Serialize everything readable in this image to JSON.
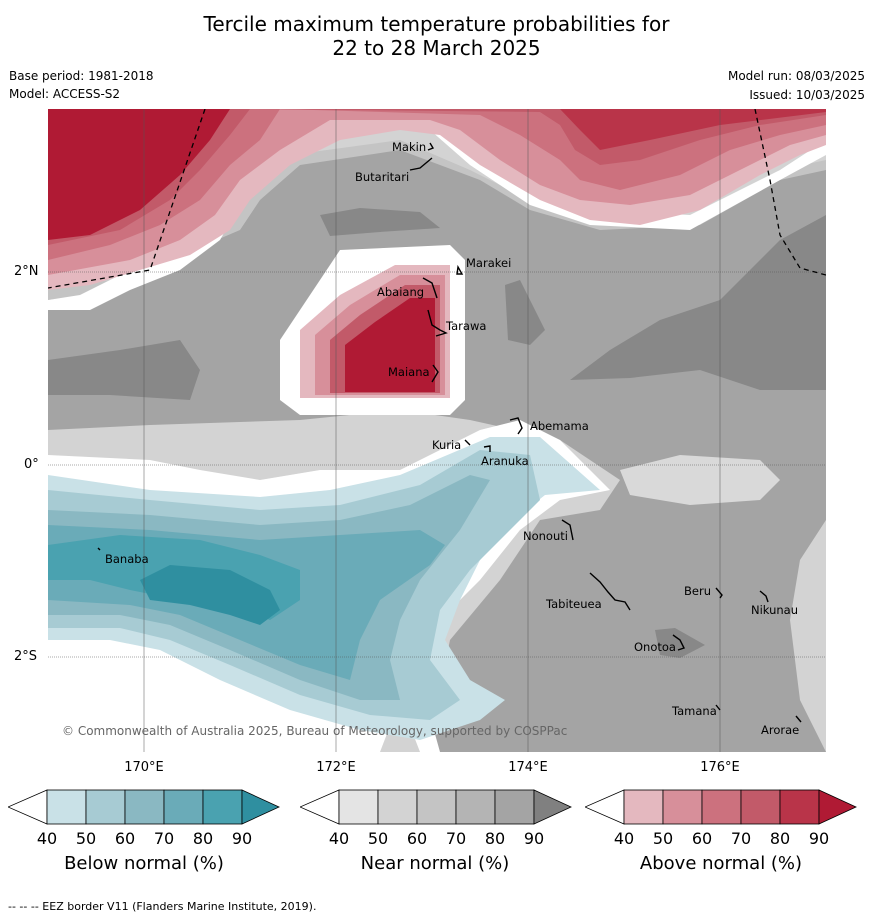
{
  "title_line1": "Tercile maximum temperature probabilities for",
  "title_line2": "22 to 28 March 2025",
  "base_period": "Base period: 1981-2018",
  "model": "Model: ACCESS-S2",
  "model_run": "Model run: 08/03/2025",
  "issued": "Issued: 10/03/2025",
  "copyright": "© Commonwealth of Australia 2025, Bureau of Meteorology, supported by COSPPac",
  "footer": "--  --  -- EEZ border V11 (Flanders Marine Institute, 2019).",
  "lon_labels": [
    "170°E",
    "172°E",
    "174°E",
    "176°E"
  ],
  "lat_labels": [
    "2°N",
    "0°",
    "2°S"
  ],
  "places": [
    "Makin",
    "Butaritari",
    "Marakei",
    "Abaiang",
    "Tarawa",
    "Maiana",
    "Abemama",
    "Kuria",
    "Aranuka",
    "Nonouti",
    "Banaba",
    "Tabiteuea",
    "Beru",
    "Nikunau",
    "Onotoa",
    "Tamana",
    "Arorae"
  ],
  "colorbars": [
    {
      "title": "Below normal (%)",
      "ticks": [
        "40",
        "50",
        "60",
        "70",
        "80",
        "90"
      ],
      "colors": [
        "#ffffff",
        "#c9e1e7",
        "#a7cbd3",
        "#8ab8c2",
        "#6aabb8",
        "#4aa2b0",
        "#2f8fa0"
      ]
    },
    {
      "title": "Near normal (%)",
      "ticks": [
        "40",
        "50",
        "60",
        "70",
        "80",
        "90"
      ],
      "colors": [
        "#ffffff",
        "#e4e4e4",
        "#d3d3d3",
        "#c4c4c4",
        "#b4b4b4",
        "#a4a4a4",
        "#808080"
      ]
    },
    {
      "title": "Above normal (%)",
      "ticks": [
        "40",
        "50",
        "60",
        "70",
        "80",
        "90"
      ],
      "colors": [
        "#ffffff",
        "#e4b8bf",
        "#d78f9a",
        "#cc717e",
        "#c25a69",
        "#b93449",
        "#b01a34"
      ]
    }
  ],
  "colors": {
    "grey_light": "#e4e4e4",
    "grey_mid": "#d3d3d3",
    "grey_60": "#c4c4c4",
    "grey_70": "#b4b4b4",
    "grey_80": "#a4a4a4",
    "grey_dark": "#888888",
    "red_50": "#e4b8bf",
    "red_60": "#d78f9a",
    "red_70": "#cc717e",
    "red_80": "#c25a69",
    "red_90": "#b01a34",
    "blue_50": "#c9e1e7",
    "blue_60": "#a7cbd3",
    "blue_70": "#8ab8c2",
    "blue_80": "#6aabb8",
    "blue_90": "#2f8fa0"
  }
}
